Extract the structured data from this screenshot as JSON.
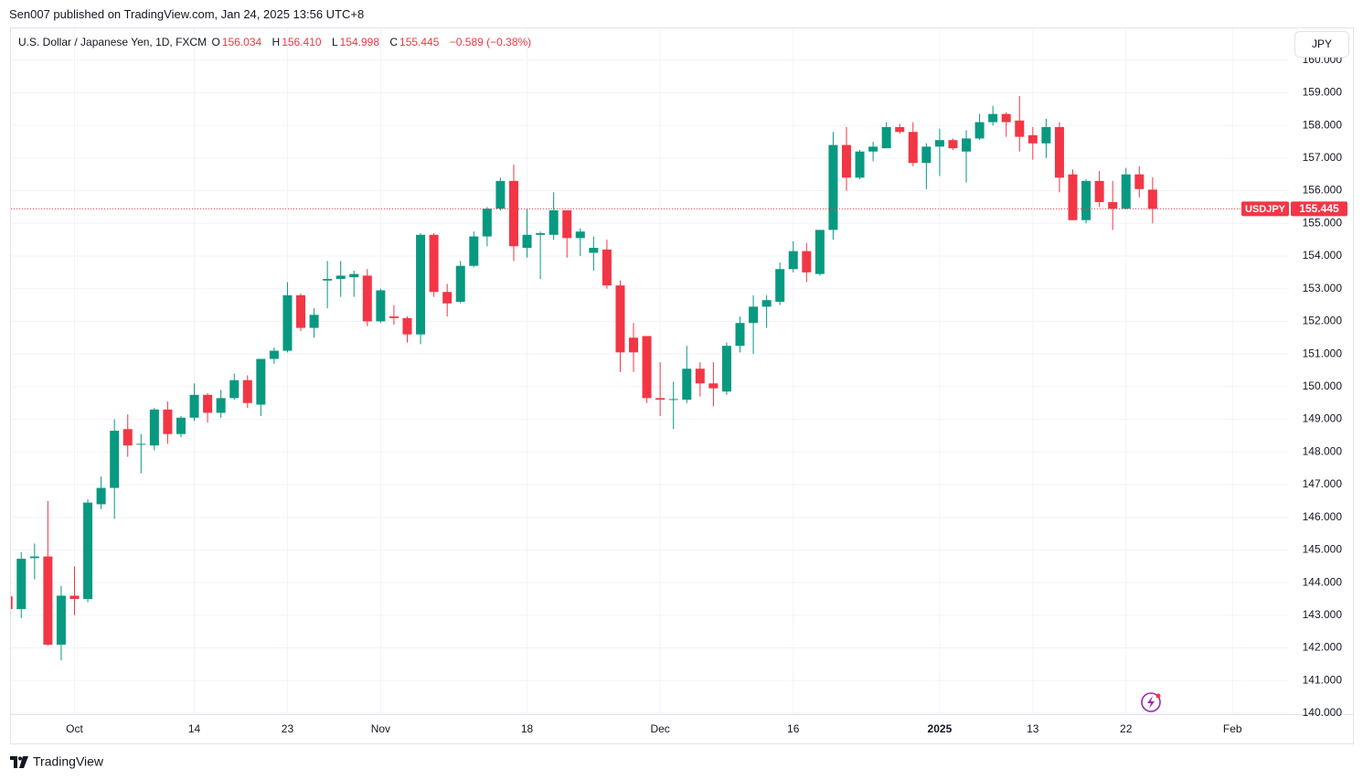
{
  "header": {
    "byline": "Sen007 published on TradingView.com, Jan 24, 2025 13:56 UTC+8",
    "instrument": "U.S. Dollar / Japanese Yen, 1D, FXCM",
    "o_label": "O",
    "h_label": "H",
    "h": "156.410",
    "l_label": "L",
    "c_label": "C",
    "change": "−0.589 (−0.38%)"
  },
  "currency_button": "JPY",
  "footer": "TradingView",
  "chart_data": {
    "type": "candlestick",
    "categories": [
      null,
      null,
      null,
      null,
      null,
      "Oct",
      null,
      null,
      null,
      null,
      null,
      null,
      null,
      null,
      "14",
      null,
      null,
      null,
      null,
      null,
      null,
      "23",
      null,
      null,
      null,
      null,
      null,
      null,
      "Nov",
      null,
      null,
      null,
      null,
      null,
      null,
      null,
      null,
      null,
      null,
      "18",
      null,
      null,
      null,
      null,
      null,
      null,
      null,
      null,
      null,
      "Dec",
      null,
      null,
      null,
      null,
      null,
      null,
      null,
      null,
      null,
      "16",
      null,
      null,
      null,
      null,
      null,
      null,
      null,
      null,
      null,
      null,
      "2025",
      null,
      null,
      null,
      null,
      null,
      null,
      "13",
      null,
      null,
      null,
      null,
      null,
      null,
      "22",
      null,
      null,
      null,
      null,
      null,
      null,
      null,
      "Feb",
      null,
      null,
      null,
      null
    ],
    "series": [
      {
        "name": "USDJPY",
        "up_color": "#089981",
        "down_color": "#f23645",
        "open": [
          143.58,
          143.19,
          144.75,
          144.8,
          142.1,
          143.6,
          143.5,
          146.4,
          146.9,
          148.7,
          148.25,
          148.2,
          149.3,
          148.55,
          149.05,
          149.75,
          149.2,
          149.65,
          150.2,
          149.45,
          150.85,
          151.1,
          152.8,
          151.8,
          153.25,
          153.3,
          153.35,
          153.4,
          152.0,
          152.15,
          152.1,
          151.6,
          154.65,
          152.9,
          152.6,
          153.7,
          154.6,
          155.45,
          156.3,
          154.25,
          154.65,
          154.65,
          155.4,
          154.55,
          154.1,
          154.2,
          153.1,
          151.5,
          151.55,
          149.65,
          149.6,
          149.6,
          150.55,
          150.1,
          149.85,
          151.25,
          151.95,
          152.45,
          152.6,
          153.6,
          154.15,
          153.45,
          154.8,
          157.4,
          156.4,
          157.2,
          157.3,
          157.95,
          157.8,
          156.85,
          157.35,
          157.55,
          157.2,
          157.6,
          158.1,
          158.35,
          158.15,
          157.7,
          157.45,
          157.95,
          156.5,
          155.1,
          156.3,
          155.65,
          155.45,
          156.5,
          156.034,
          null,
          null,
          null,
          null,
          null,
          null,
          null,
          null,
          null,
          null
        ],
        "high": [
          143.6,
          144.93,
          145.2,
          146.5,
          143.9,
          144.5,
          146.55,
          147.25,
          149.0,
          149.15,
          148.55,
          149.35,
          149.55,
          149.1,
          150.1,
          149.8,
          149.9,
          150.4,
          150.35,
          150.85,
          151.2,
          153.2,
          152.85,
          152.4,
          153.85,
          153.85,
          153.55,
          153.6,
          153.0,
          152.5,
          152.15,
          154.7,
          154.7,
          153.15,
          153.85,
          154.75,
          155.5,
          156.4,
          156.8,
          155.45,
          154.75,
          155.95,
          155.4,
          154.85,
          154.6,
          154.5,
          153.25,
          151.95,
          151.55,
          150.75,
          150.15,
          151.25,
          150.75,
          150.75,
          151.35,
          152.15,
          152.8,
          152.8,
          153.8,
          154.45,
          154.4,
          154.8,
          157.8,
          157.95,
          157.25,
          157.5,
          158.1,
          158.05,
          158.1,
          157.45,
          157.9,
          157.6,
          157.85,
          158.35,
          158.6,
          158.4,
          158.9,
          157.95,
          158.2,
          158.1,
          156.65,
          156.35,
          156.6,
          156.3,
          156.7,
          156.75,
          156.41,
          null,
          null,
          null,
          null,
          null,
          null,
          null,
          null,
          null,
          null
        ],
        "low": [
          143.15,
          142.91,
          144.1,
          142.07,
          141.62,
          143.0,
          143.4,
          146.25,
          145.95,
          147.85,
          147.35,
          148.05,
          148.25,
          148.45,
          148.95,
          148.9,
          149.05,
          149.6,
          149.35,
          149.1,
          150.7,
          151.05,
          151.7,
          151.5,
          152.4,
          152.75,
          152.75,
          151.85,
          151.95,
          151.9,
          151.35,
          151.3,
          152.75,
          152.15,
          152.55,
          153.65,
          154.3,
          155.4,
          153.85,
          153.95,
          153.3,
          154.5,
          153.95,
          154.0,
          153.55,
          153.0,
          150.45,
          150.45,
          149.5,
          149.1,
          148.7,
          149.5,
          149.7,
          149.4,
          149.75,
          151.05,
          151.0,
          151.8,
          152.5,
          153.5,
          153.2,
          153.4,
          154.5,
          156.0,
          156.35,
          156.9,
          157.3,
          157.75,
          156.75,
          156.05,
          156.45,
          157.25,
          156.25,
          157.55,
          158.0,
          157.65,
          157.2,
          156.95,
          157.0,
          155.95,
          155.1,
          155.0,
          155.5,
          154.8,
          155.43,
          155.8,
          154.998,
          null,
          null,
          null,
          null,
          null,
          null,
          null,
          null,
          null,
          null
        ],
        "close": [
          143.19,
          144.73,
          144.8,
          142.1,
          143.6,
          143.5,
          146.45,
          146.9,
          148.65,
          148.2,
          148.25,
          149.3,
          148.55,
          149.05,
          149.75,
          149.2,
          149.65,
          150.2,
          149.5,
          150.85,
          151.1,
          152.8,
          151.8,
          152.2,
          153.3,
          153.4,
          153.45,
          152.0,
          152.95,
          152.1,
          151.6,
          154.65,
          152.9,
          152.55,
          153.7,
          154.6,
          155.45,
          156.3,
          154.3,
          154.65,
          154.7,
          155.4,
          154.55,
          154.75,
          154.25,
          153.1,
          151.05,
          151.05,
          149.65,
          149.6,
          149.62,
          150.55,
          150.1,
          149.95,
          151.25,
          151.95,
          152.45,
          152.65,
          153.6,
          154.15,
          153.5,
          154.8,
          157.4,
          156.4,
          157.2,
          157.35,
          157.95,
          157.8,
          156.85,
          157.35,
          157.55,
          157.3,
          157.6,
          158.1,
          158.35,
          158.1,
          157.65,
          157.45,
          157.95,
          156.4,
          155.1,
          156.3,
          155.65,
          155.45,
          156.5,
          156.05,
          155.445,
          null,
          null,
          null,
          null,
          null,
          null,
          null,
          null,
          null,
          null
        ]
      }
    ],
    "ylim": [
      140,
      161
    ],
    "yticks": [
      {
        "value": 140,
        "label": "140.000"
      },
      {
        "value": 141,
        "label": "141.000"
      },
      {
        "value": 142,
        "label": "142.000"
      },
      {
        "value": 143,
        "label": "143.000"
      },
      {
        "value": 144,
        "label": "144.000"
      },
      {
        "value": 145,
        "label": "145.000"
      },
      {
        "value": 146,
        "label": "146.000"
      },
      {
        "value": 147,
        "label": "147.000"
      },
      {
        "value": 148,
        "label": "148.000"
      },
      {
        "value": 149,
        "label": "149.000"
      },
      {
        "value": 150,
        "label": "150.000"
      },
      {
        "value": 151,
        "label": "151.000"
      },
      {
        "value": 152,
        "label": "152.000"
      },
      {
        "value": 153,
        "label": "153.000"
      },
      {
        "value": 154,
        "label": "154.000"
      },
      {
        "value": 155,
        "label": "155.000"
      },
      {
        "value": 156,
        "label": "156.000"
      },
      {
        "value": 157,
        "label": "157.000"
      },
      {
        "value": 158,
        "label": "158.000"
      },
      {
        "value": 159,
        "label": "159.000"
      },
      {
        "value": 160,
        "label": "160.000"
      }
    ],
    "grid": true
  }
}
